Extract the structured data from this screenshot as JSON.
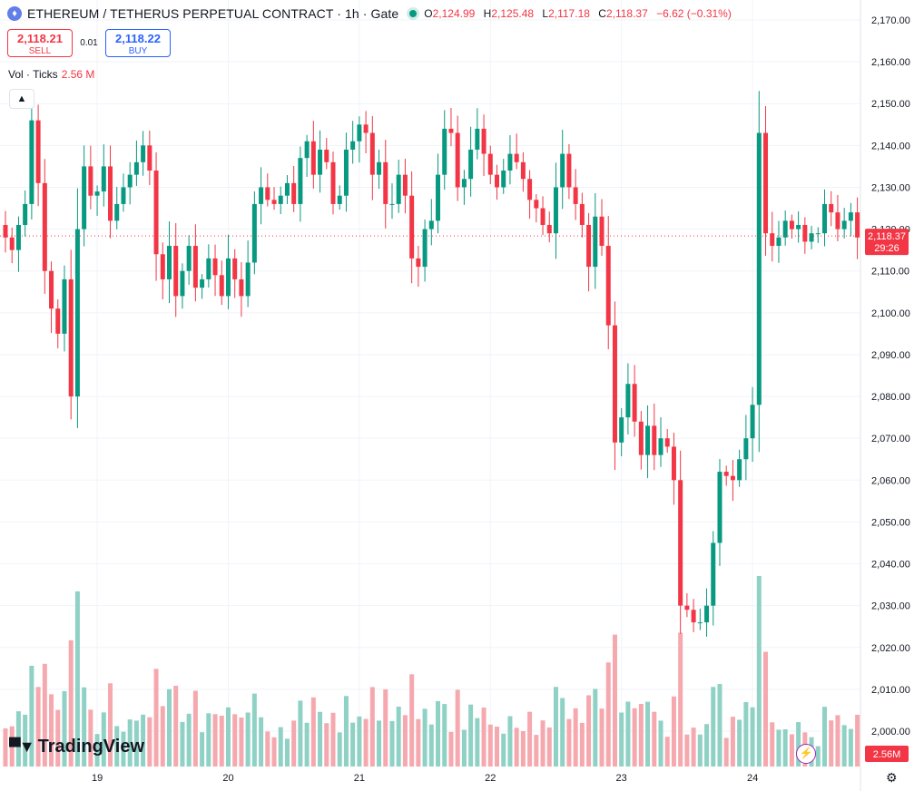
{
  "header": {
    "title": "ETHEREUM / TETHERUS PERPETUAL CONTRACT · 1h · Gate",
    "o_label": "O",
    "o": "2,124.99",
    "h_label": "H",
    "h": "2,125.48",
    "l_label": "L",
    "l": "2,117.18",
    "c_label": "C",
    "c": "2,118.37",
    "change": "−6.62 (−0.31%)"
  },
  "trade": {
    "sell_price": "2,118.21",
    "sell_label": "SELL",
    "spread": "0.01",
    "buy_price": "2,118.22",
    "buy_label": "BUY"
  },
  "volume": {
    "label": "Vol · Ticks",
    "value": "2.56 M",
    "badge": "2.56M"
  },
  "price_badge": {
    "price": "2,118.37",
    "countdown": "29:26"
  },
  "branding": {
    "name": "TradingView"
  },
  "icons": {
    "symbol": "ethereum-icon",
    "status": "market-open-icon",
    "collapse": "chevron-up-icon",
    "bolt": "lightning-icon",
    "settings": "gear-icon"
  },
  "colors": {
    "up": "#089981",
    "down": "#f23645",
    "vol_up": "#8fd1c5",
    "vol_down": "#f5a8ae",
    "accent": "#2962ff"
  },
  "chart_data": {
    "type": "candlestick",
    "interval": "1h",
    "y_ticks": [
      "2,170.00",
      "2,160.00",
      "2,150.00",
      "2,140.00",
      "2,130.00",
      "2,120.00",
      "2,110.00",
      "2,100.00",
      "2,090.00",
      "2,080.00",
      "2,070.00",
      "2,060.00",
      "2,050.00",
      "2,040.00",
      "2,030.00",
      "2,020.00",
      "2,010.00",
      "2,000.00"
    ],
    "x_ticks": [
      {
        "label": "19",
        "index": 14
      },
      {
        "label": "20",
        "index": 34
      },
      {
        "label": "21",
        "index": 54
      },
      {
        "label": "22",
        "index": 74
      },
      {
        "label": "23",
        "index": 94
      },
      {
        "label": "24",
        "index": 114
      }
    ],
    "ylim": [
      1998,
      2172
    ],
    "last_price": 2118.37,
    "closes": [
      2118,
      2115,
      2121,
      2126,
      2146,
      2131,
      2110,
      2101,
      2095,
      2108,
      2080,
      2120,
      2135,
      2128,
      2129,
      2135,
      2122,
      2126,
      2130,
      2133,
      2136,
      2140,
      2134,
      2114,
      2108,
      2116,
      2104,
      2110,
      2116,
      2106,
      2108,
      2113,
      2109,
      2104,
      2113,
      2108,
      2104,
      2112,
      2126,
      2130,
      2127,
      2126,
      2128,
      2131,
      2126,
      2137,
      2141,
      2133,
      2139,
      2136,
      2126,
      2128,
      2139,
      2141,
      2145,
      2143,
      2133,
      2136,
      2126,
      2126,
      2133,
      2128,
      2113,
      2111,
      2120,
      2122,
      2133,
      2144,
      2143,
      2130,
      2132,
      2139,
      2144,
      2138,
      2133,
      2130,
      2134,
      2138,
      2136,
      2132,
      2127,
      2125,
      2121,
      2119,
      2130,
      2138,
      2130,
      2126,
      2121,
      2111,
      2123,
      2116,
      2097,
      2069,
      2075,
      2083,
      2074,
      2066,
      2073,
      2066,
      2070,
      2068,
      2060,
      2030,
      2029,
      2026,
      2026,
      2030,
      2045,
      2062,
      2061,
      2060,
      2065,
      2070,
      2078,
      2143,
      2119,
      2116,
      2118,
      2122,
      2120,
      2121,
      2117,
      2119,
      2119,
      2126,
      2124,
      2120,
      2122,
      2124,
      2118
    ]
  }
}
